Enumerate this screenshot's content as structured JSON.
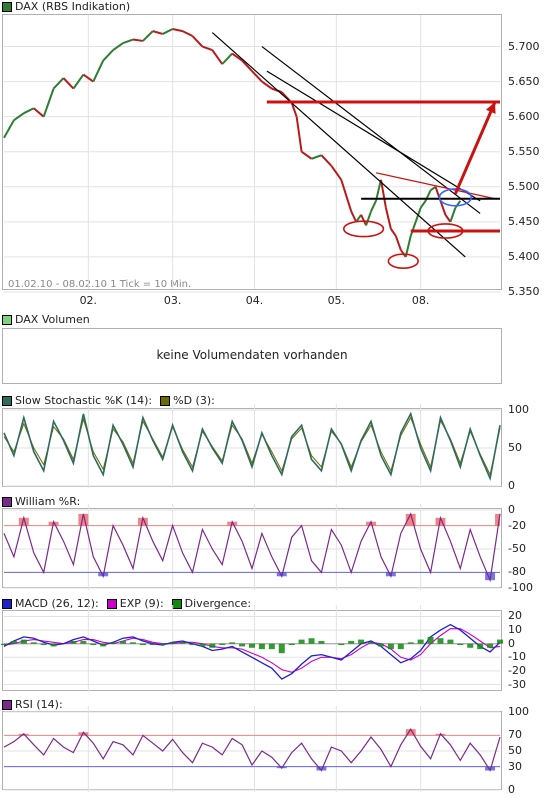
{
  "price_panel": {
    "legend_label": "DAX (RBS Indikation)",
    "legend_color": "#2e7d32",
    "footnote": "01.02.10 - 08.02.10   1 Tick = 10 Min.",
    "y_ticks": [
      "5.700",
      "5.650",
      "5.600",
      "5.550",
      "5.500",
      "5.450",
      "5.400",
      "5.350"
    ],
    "x_ticks": [
      "02.",
      "03.",
      "04.",
      "05.",
      "08."
    ]
  },
  "volume_panel": {
    "legend_label": "DAX Volumen",
    "legend_color": "#7fd37f",
    "message": "keine Volumendaten vorhanden"
  },
  "stoch_panel": {
    "legend_k": "Slow Stochastic %K (14):",
    "legend_d": "%D (3):",
    "k_color": "#2e6b5e",
    "d_color": "#6b6b00",
    "y_ticks": [
      "100",
      "50",
      "0"
    ]
  },
  "williams_panel": {
    "legend_label": "William %R:",
    "line_color": "#7b2a8c",
    "y_ticks": [
      "0",
      "-20",
      "-50",
      "-80",
      "-100"
    ],
    "upper_level": "-20",
    "lower_level": "-80"
  },
  "macd_panel": {
    "legend_macd": "MACD (26, 12):",
    "legend_exp": "EXP (9):",
    "legend_div": "Divergence:",
    "macd_color": "#1f1fcc",
    "exp_color": "#cc00cc",
    "div_color": "#118811",
    "y_ticks": [
      "20",
      "10",
      "0",
      "-10",
      "-20",
      "-30"
    ]
  },
  "rsi_panel": {
    "legend_label": "RSI (14):",
    "line_color": "#7b2a8c",
    "y_ticks": [
      "100",
      "70",
      "50",
      "30",
      "0"
    ],
    "upper_level": "70",
    "lower_level": "30"
  },
  "chart_data": [
    {
      "type": "line",
      "name": "price",
      "ylim": [
        5350,
        5735
      ],
      "x_range": [
        0,
        100
      ],
      "x_ticks": [
        {
          "label": "02.",
          "x": 17
        },
        {
          "label": "03.",
          "x": 34
        },
        {
          "label": "04.",
          "x": 50.5
        },
        {
          "label": "05.",
          "x": 67
        },
        {
          "label": "08.",
          "x": 84
        }
      ],
      "y_ticks": [
        5700,
        5650,
        5600,
        5550,
        5500,
        5450,
        5400,
        5350
      ],
      "points": [
        [
          0,
          5570
        ],
        [
          2,
          5595
        ],
        [
          4,
          5605
        ],
        [
          6,
          5612
        ],
        [
          8,
          5600
        ],
        [
          10,
          5640
        ],
        [
          12,
          5655
        ],
        [
          14,
          5640
        ],
        [
          16,
          5660
        ],
        [
          18,
          5650
        ],
        [
          20,
          5680
        ],
        [
          22,
          5695
        ],
        [
          24,
          5705
        ],
        [
          26,
          5710
        ],
        [
          28,
          5708
        ],
        [
          30,
          5722
        ],
        [
          32,
          5718
        ],
        [
          34,
          5725
        ],
        [
          36,
          5722
        ],
        [
          38,
          5715
        ],
        [
          40,
          5700
        ],
        [
          42,
          5695
        ],
        [
          44,
          5675
        ],
        [
          46,
          5690
        ],
        [
          48,
          5680
        ],
        [
          50,
          5665
        ],
        [
          52,
          5650
        ],
        [
          54,
          5640
        ],
        [
          56,
          5635
        ],
        [
          58,
          5620
        ],
        [
          59,
          5600
        ],
        [
          60,
          5550
        ],
        [
          62,
          5540
        ],
        [
          64,
          5545
        ],
        [
          66,
          5530
        ],
        [
          68,
          5510
        ],
        [
          70,
          5465
        ],
        [
          71,
          5450
        ],
        [
          72,
          5460
        ],
        [
          73,
          5445
        ],
        [
          74,
          5465
        ],
        [
          75,
          5480
        ],
        [
          76,
          5510
        ],
        [
          77,
          5470
        ],
        [
          78,
          5440
        ],
        [
          79,
          5430
        ],
        [
          80,
          5410
        ],
        [
          81,
          5400
        ],
        [
          82,
          5430
        ],
        [
          83,
          5450
        ],
        [
          84,
          5470
        ],
        [
          85,
          5480
        ],
        [
          86,
          5495
        ],
        [
          87,
          5500
        ],
        [
          88,
          5480
        ],
        [
          89,
          5460
        ],
        [
          90,
          5450
        ],
        [
          91,
          5470
        ],
        [
          92,
          5480
        ]
      ],
      "annotations": {
        "horizontal_lines": [
          {
            "y": 5621,
            "x_start": 53,
            "x_end": 100,
            "color": "#cc1111"
          },
          {
            "y": 5483,
            "x_start": 72,
            "x_end": 100,
            "color": "#000000"
          },
          {
            "y": 5437,
            "x_start": 82,
            "x_end": 100,
            "color": "#cc1111"
          }
        ],
        "trend_lines": [
          {
            "p1": [
              42,
              5720
            ],
            "p2": [
              93,
              5400
            ],
            "color": "#000000"
          },
          {
            "p1": [
              52,
              5700
            ],
            "p2": [
              96,
              5462
            ],
            "color": "#000000"
          },
          {
            "p1": [
              53,
              5665
            ],
            "p2": [
              96,
              5480
            ],
            "color": "#000000"
          },
          {
            "p1": [
              75,
              5520
            ],
            "p2": [
              99,
              5483
            ],
            "color": "#cc1111"
          }
        ],
        "arrow": {
          "from": [
            91,
            5490
          ],
          "to": [
            99,
            5621
          ],
          "color": "#cc1111"
        },
        "ellipses": [
          {
            "cx": 72.5,
            "cy": 5440,
            "rx": 4,
            "ry": 11,
            "color": "#cc1111"
          },
          {
            "cx": 80.5,
            "cy": 5394,
            "rx": 3,
            "ry": 10,
            "color": "#cc1111"
          },
          {
            "cx": 89,
            "cy": 5437,
            "rx": 3.5,
            "ry": 10,
            "color": "#cc1111"
          },
          {
            "cx": 91,
            "cy": 5485,
            "rx": 3.2,
            "ry": 12,
            "color": "#3366ff"
          }
        ]
      }
    },
    {
      "type": "line",
      "name": "slow_stochastic",
      "ylim": [
        0,
        100
      ],
      "k_values": [
        70,
        40,
        90,
        45,
        20,
        85,
        60,
        30,
        95,
        40,
        15,
        80,
        55,
        25,
        90,
        60,
        35,
        80,
        45,
        20,
        75,
        50,
        30,
        85,
        60,
        25,
        70,
        40,
        15,
        65,
        80,
        35,
        20,
        75,
        55,
        20,
        60,
        85,
        40,
        15,
        70,
        95,
        50,
        20,
        90,
        60,
        25,
        75,
        40,
        10,
        80
      ],
      "d_values": [
        65,
        45,
        82,
        50,
        28,
        78,
        62,
        35,
        88,
        45,
        22,
        75,
        58,
        30,
        85,
        62,
        38,
        78,
        48,
        25,
        72,
        52,
        33,
        80,
        62,
        30,
        68,
        45,
        20,
        62,
        76,
        40,
        25,
        72,
        56,
        25,
        58,
        80,
        45,
        20,
        66,
        90,
        55,
        25,
        86,
        62,
        30,
        72,
        42,
        15,
        76
      ]
    },
    {
      "type": "line",
      "name": "williams_r",
      "ylim": [
        -100,
        0
      ],
      "levels": [
        -20,
        -80
      ],
      "values": [
        -30,
        -60,
        -10,
        -55,
        -80,
        -15,
        -40,
        -70,
        -5,
        -60,
        -85,
        -20,
        -45,
        -75,
        -10,
        -40,
        -65,
        -20,
        -55,
        -80,
        -25,
        -50,
        -70,
        -15,
        -40,
        -75,
        -30,
        -60,
        -85,
        -35,
        -20,
        -65,
        -80,
        -25,
        -45,
        -80,
        -40,
        -15,
        -60,
        -85,
        -30,
        -5,
        -50,
        -80,
        -10,
        -40,
        -75,
        -25,
        -60,
        -90,
        -5
      ]
    },
    {
      "type": "line",
      "name": "macd",
      "ylim": [
        -34,
        24
      ],
      "macd": [
        -2,
        2,
        5,
        4,
        1,
        -1,
        0,
        3,
        5,
        2,
        -1,
        1,
        4,
        5,
        2,
        0,
        -1,
        1,
        2,
        0,
        -2,
        -5,
        -4,
        -2,
        -6,
        -10,
        -14,
        -18,
        -26,
        -22,
        -15,
        -9,
        -8,
        -10,
        -12,
        -6,
        0,
        2,
        -2,
        -8,
        -14,
        -11,
        -5,
        5,
        10,
        14,
        10,
        4,
        -2,
        -6,
        1
      ],
      "signal": [
        -1,
        0,
        2,
        3,
        2,
        1,
        0,
        1,
        3,
        3,
        1,
        0,
        2,
        4,
        3,
        1,
        0,
        0,
        1,
        1,
        0,
        -2,
        -3,
        -3,
        -4,
        -7,
        -10,
        -14,
        -19,
        -21,
        -18,
        -13,
        -10,
        -10,
        -11,
        -8,
        -3,
        1,
        0,
        -4,
        -10,
        -12,
        -8,
        0,
        6,
        11,
        11,
        7,
        2,
        -3,
        -2
      ],
      "divergence": [
        -1,
        2,
        3,
        1,
        -1,
        -2,
        0,
        2,
        2,
        -1,
        -2,
        1,
        2,
        1,
        -1,
        -1,
        -1,
        1,
        1,
        -1,
        -2,
        -3,
        -1,
        1,
        -2,
        -3,
        -4,
        -4,
        -7,
        -1,
        3,
        4,
        2,
        0,
        -1,
        2,
        3,
        1,
        -2,
        -4,
        -4,
        1,
        3,
        5,
        4,
        3,
        -1,
        -3,
        -4,
        -3,
        3
      ]
    },
    {
      "type": "line",
      "name": "rsi",
      "ylim": [
        0,
        100
      ],
      "levels": [
        70,
        30
      ],
      "values": [
        55,
        62,
        72,
        58,
        45,
        66,
        55,
        48,
        74,
        60,
        40,
        62,
        58,
        45,
        70,
        60,
        50,
        65,
        48,
        35,
        60,
        55,
        45,
        66,
        58,
        32,
        50,
        42,
        28,
        48,
        60,
        40,
        25,
        55,
        50,
        35,
        50,
        68,
        52,
        30,
        58,
        78,
        56,
        40,
        72,
        58,
        38,
        60,
        45,
        25,
        68
      ]
    }
  ]
}
